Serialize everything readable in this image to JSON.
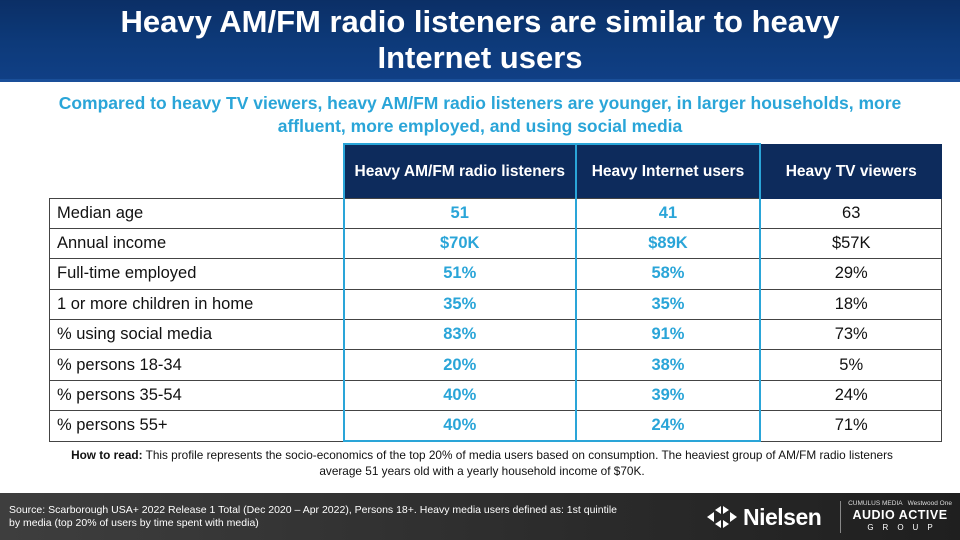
{
  "title": "Heavy AM/FM radio listeners are similar to heavy Internet users",
  "subtitle": "Compared to heavy TV viewers, heavy AM/FM radio listeners are younger, in larger households, more affluent, more employed, and using social media",
  "table": {
    "columns": [
      "Heavy AM/FM radio listeners",
      "Heavy Internet users",
      "Heavy TV viewers"
    ],
    "rows": [
      {
        "label": "Median age",
        "radio": "51",
        "internet": "41",
        "tv": "63"
      },
      {
        "label": "Annual income",
        "radio": "$70K",
        "internet": "$89K",
        "tv": "$57K"
      },
      {
        "label": "Full-time employed",
        "radio": "51%",
        "internet": "58%",
        "tv": "29%"
      },
      {
        "label": "1 or more children in home",
        "radio": "35%",
        "internet": "35%",
        "tv": "18%"
      },
      {
        "label": "% using social media",
        "radio": "83%",
        "internet": "91%",
        "tv": "73%"
      },
      {
        "label": "% persons 18-34",
        "radio": "20%",
        "internet": "38%",
        "tv": "5%"
      },
      {
        "label": "% persons 35-54",
        "radio": "40%",
        "internet": "39%",
        "tv": "24%"
      },
      {
        "label": "% persons 55+",
        "radio": "40%",
        "internet": "24%",
        "tv": "71%"
      }
    ]
  },
  "how_to_read": {
    "label": "How to read:",
    "text": "This profile represents the socio-economics of the top 20% of media users based on consumption. The heaviest group of AM/FM radio listeners average 51 years old with a yearly household income of $70K."
  },
  "footer": {
    "source": "Source: Scarborough USA+ 2022 Release 1 Total (Dec 2020 – Apr 2022), Persons 18+. Heavy media users defined as: 1st quintile by media (top 20% of users by time spent with media)",
    "nielsen_logo_text": "Nielsen",
    "aa_top_left": "CUMULUS MEDIA",
    "aa_top_right": "Westwood One",
    "aa_main": "AUDIO ACTIVE",
    "aa_group": "GROUP"
  },
  "colors": {
    "header_bg": "#0d3a7a",
    "table_head_bg": "#0d2b5c",
    "accent_blue": "#2aa5d8",
    "footer_bg": "#2b2b2b"
  }
}
